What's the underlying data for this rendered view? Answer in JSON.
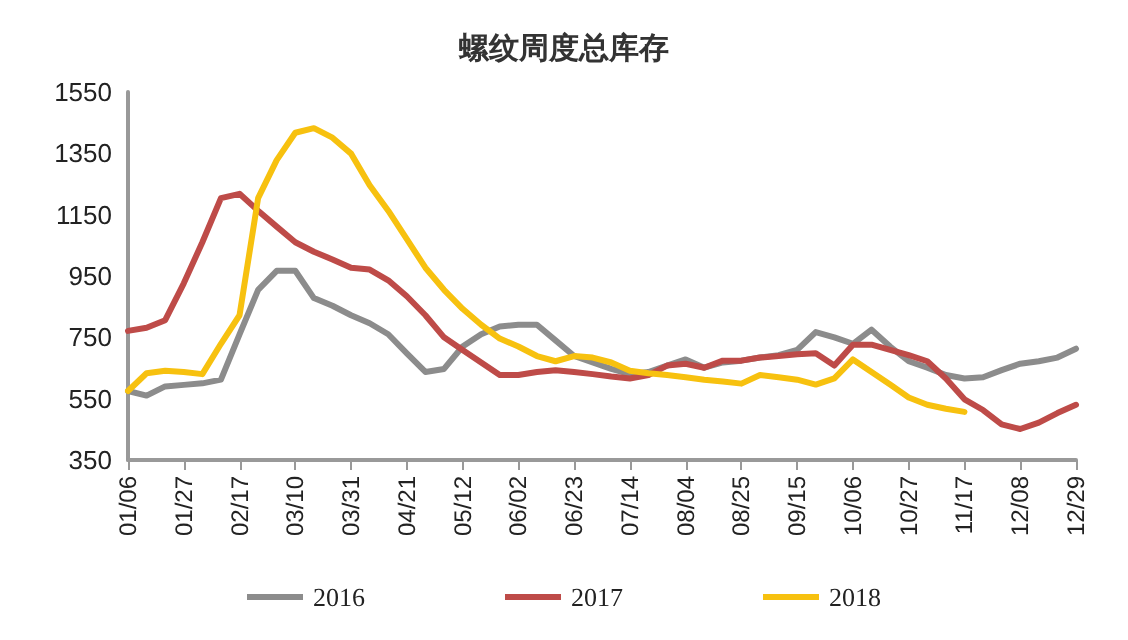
{
  "chart_data": {
    "type": "line",
    "title": "螺纹周度总库存",
    "categories": [
      "01/06",
      null,
      null,
      "01/27",
      null,
      null,
      "02/17",
      null,
      null,
      "03/10",
      null,
      null,
      "03/31",
      null,
      null,
      "04/21",
      null,
      null,
      "05/12",
      null,
      null,
      "06/02",
      null,
      null,
      "06/23",
      null,
      null,
      "07/14",
      null,
      null,
      "08/04",
      null,
      null,
      "08/25",
      null,
      null,
      "09/15",
      null,
      null,
      "10/06",
      null,
      null,
      "10/27",
      null,
      null,
      "11/17",
      null,
      null,
      "12/08",
      null,
      null,
      "12/29"
    ],
    "series": [
      {
        "name": "2016",
        "color": "#8c8c8c",
        "values": [
          575,
          560,
          590,
          595,
          600,
          612,
          760,
          905,
          967,
          967,
          878,
          853,
          822,
          796,
          760,
          698,
          637,
          647,
          720,
          760,
          785,
          791,
          791,
          740,
          689,
          668,
          647,
          630,
          637,
          658,
          678,
          651,
          668,
          674,
          684,
          692,
          709,
          767,
          750,
          729,
          775,
          720,
          672,
          651,
          627,
          616,
          620,
          643,
          664,
          672,
          684,
          713
        ]
      },
      {
        "name": "2017",
        "color": "#be4b48",
        "values": [
          771,
          781,
          806,
          926,
          1060,
          1204,
          1218,
          1163,
          1111,
          1060,
          1029,
          1004,
          977,
          971,
          936,
          884,
          822,
          750,
          709,
          668,
          627,
          627,
          637,
          643,
          637,
          630,
          622,
          616,
          627,
          658,
          664,
          651,
          674,
          674,
          684,
          689,
          695,
          698,
          658,
          726,
          726,
          709,
          692,
          672,
          616,
          548,
          513,
          466,
          451,
          472,
          503,
          530
        ]
      },
      {
        "name": "2018",
        "color": "#f7c10f",
        "values": [
          575,
          633,
          641,
          637,
          630,
          729,
          822,
          1204,
          1328,
          1417,
          1432,
          1401,
          1349,
          1246,
          1163,
          1070,
          977,
          905,
          843,
          791,
          746,
          720,
          689,
          672,
          689,
          684,
          668,
          641,
          633,
          627,
          620,
          612,
          606,
          599,
          627,
          620,
          612,
          596,
          616,
          678,
          637,
          596,
          554,
          530,
          517,
          507,
          null,
          null,
          null,
          null,
          null,
          null
        ]
      }
    ],
    "ylim": [
      350,
      1550
    ],
    "yticks": [
      350,
      550,
      750,
      950,
      1150,
      1350,
      1550
    ],
    "grid": false,
    "legend": "bottom",
    "marker": "none",
    "line_style": "solid"
  }
}
